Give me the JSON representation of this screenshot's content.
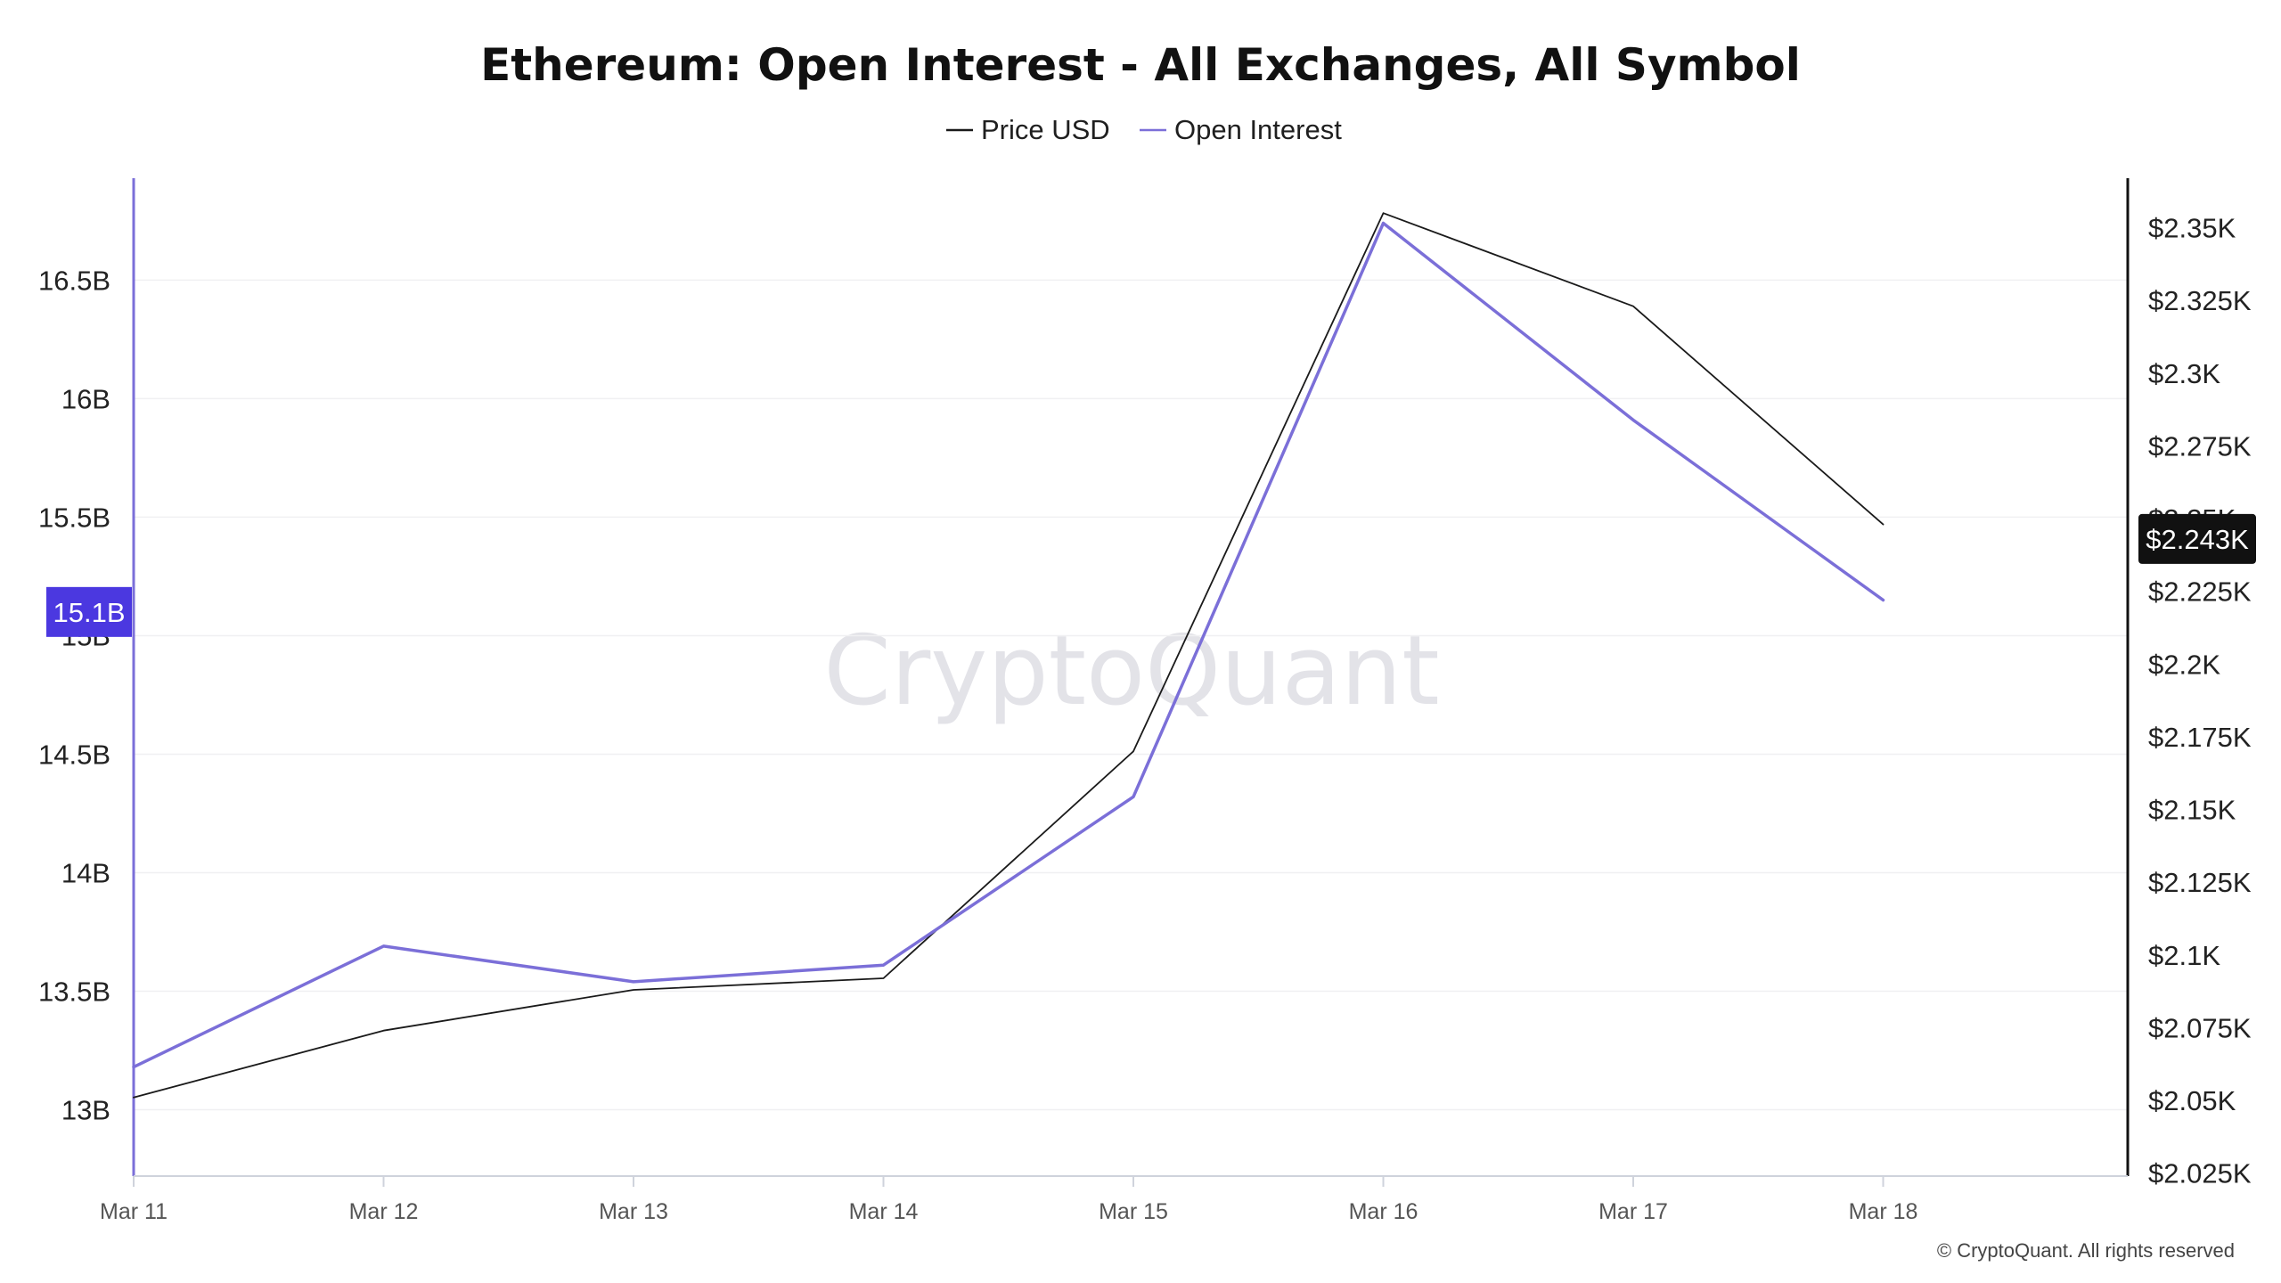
{
  "chart_data": {
    "type": "line",
    "title": "Ethereum: Open Interest - All Exchanges, All Symbol",
    "watermark": "CryptoQuant",
    "copyright": "© CryptoQuant. All rights reserved",
    "categories": [
      "Mar 11",
      "Mar 12",
      "Mar 13",
      "Mar 14",
      "Mar 15",
      "Mar 16",
      "Mar 17",
      "Mar 18"
    ],
    "legend_position": "top-center",
    "grid": true,
    "y_left": {
      "ticks": [
        13,
        13.5,
        14,
        14.5,
        15,
        15.5,
        16,
        16.5
      ],
      "tick_labels": [
        "13B",
        "13.5B",
        "14B",
        "14.5B",
        "15B",
        "15.5B",
        "16B",
        "16.5B"
      ],
      "range": [
        12.72,
        16.93
      ]
    },
    "y_right": {
      "ticks": [
        2025,
        2050,
        2075,
        2100,
        2125,
        2150,
        2175,
        2200,
        2225,
        2250,
        2275,
        2300,
        2325,
        2350
      ],
      "tick_labels": [
        "$2.025K",
        "$2.05K",
        "$2.075K",
        "$2.1K",
        "$2.125K",
        "$2.15K",
        "$2.175K",
        "$2.2K",
        "$2.225K",
        "$2.25K",
        "$2.275K",
        "$2.3K",
        "$2.325K",
        "$2.35K"
      ],
      "range": [
        2024,
        2367
      ]
    },
    "series": [
      {
        "name": "Price USD",
        "axis": "right",
        "color": "#1a1a1a",
        "values": [
          2051,
          2074,
          2088,
          2092,
          2170,
          2355,
          2323,
          2248
        ]
      },
      {
        "name": "Open Interest",
        "axis": "left",
        "color": "#7b6fd8",
        "values": [
          13.18,
          13.69,
          13.54,
          13.61,
          14.32,
          16.74,
          15.91,
          15.15
        ]
      }
    ],
    "last_value_badges": {
      "left": {
        "label": "15.1B",
        "value": 15.1,
        "color": "#4b38e0"
      },
      "right": {
        "label": "$2.243K",
        "value": 2243,
        "color": "#111111"
      }
    }
  }
}
